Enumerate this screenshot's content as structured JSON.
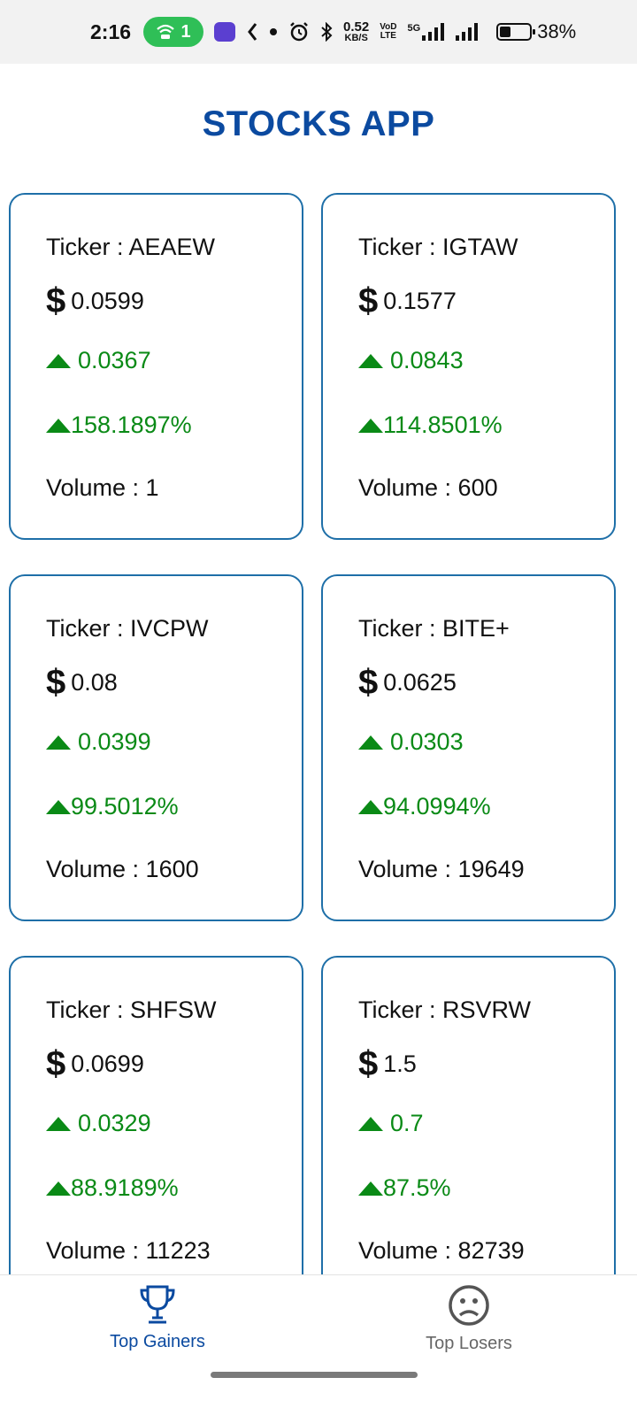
{
  "status_bar": {
    "time": "2:16",
    "hotspot_count": "1",
    "net_speed_value": "0.52",
    "net_speed_unit": "KB/S",
    "volte_top": "VoD",
    "volte_bottom": "LTE",
    "network": "5G",
    "battery_percent": "38%",
    "battery_level": 0.38
  },
  "app": {
    "title": "STOCKS APP"
  },
  "cards": [
    {
      "ticker": "Ticker : AEAEW",
      "price": "0.0599",
      "change": "0.0367",
      "percent": "158.1897%",
      "volume": "Volume : 1"
    },
    {
      "ticker": "Ticker : IGTAW",
      "price": "0.1577",
      "change": "0.0843",
      "percent": "114.8501%",
      "volume": "Volume : 600"
    },
    {
      "ticker": "Ticker : IVCPW",
      "price": "0.08",
      "change": "0.0399",
      "percent": "99.5012%",
      "volume": "Volume : 1600"
    },
    {
      "ticker": "Ticker : BITE+",
      "price": "0.0625",
      "change": "0.0303",
      "percent": "94.0994%",
      "volume": "Volume : 19649"
    },
    {
      "ticker": "Ticker : SHFSW",
      "price": "0.0699",
      "change": "0.0329",
      "percent": "88.9189%",
      "volume": "Volume : 11223"
    },
    {
      "ticker": "Ticker : RSVRW",
      "price": "1.5",
      "change": "0.7",
      "percent": "87.5%",
      "volume": "Volume : 82739"
    }
  ],
  "currency_symbol": "$",
  "bottom_nav": {
    "gainers_label": "Top Gainers",
    "losers_label": "Top Losers"
  },
  "icons": {
    "gainers": "trophy-icon",
    "losers": "sad-face-icon",
    "up": "triangle-up-icon"
  },
  "colors": {
    "accent": "#0b4aa0",
    "card_border": "#1e6fa8",
    "gain": "#0a8a16"
  }
}
